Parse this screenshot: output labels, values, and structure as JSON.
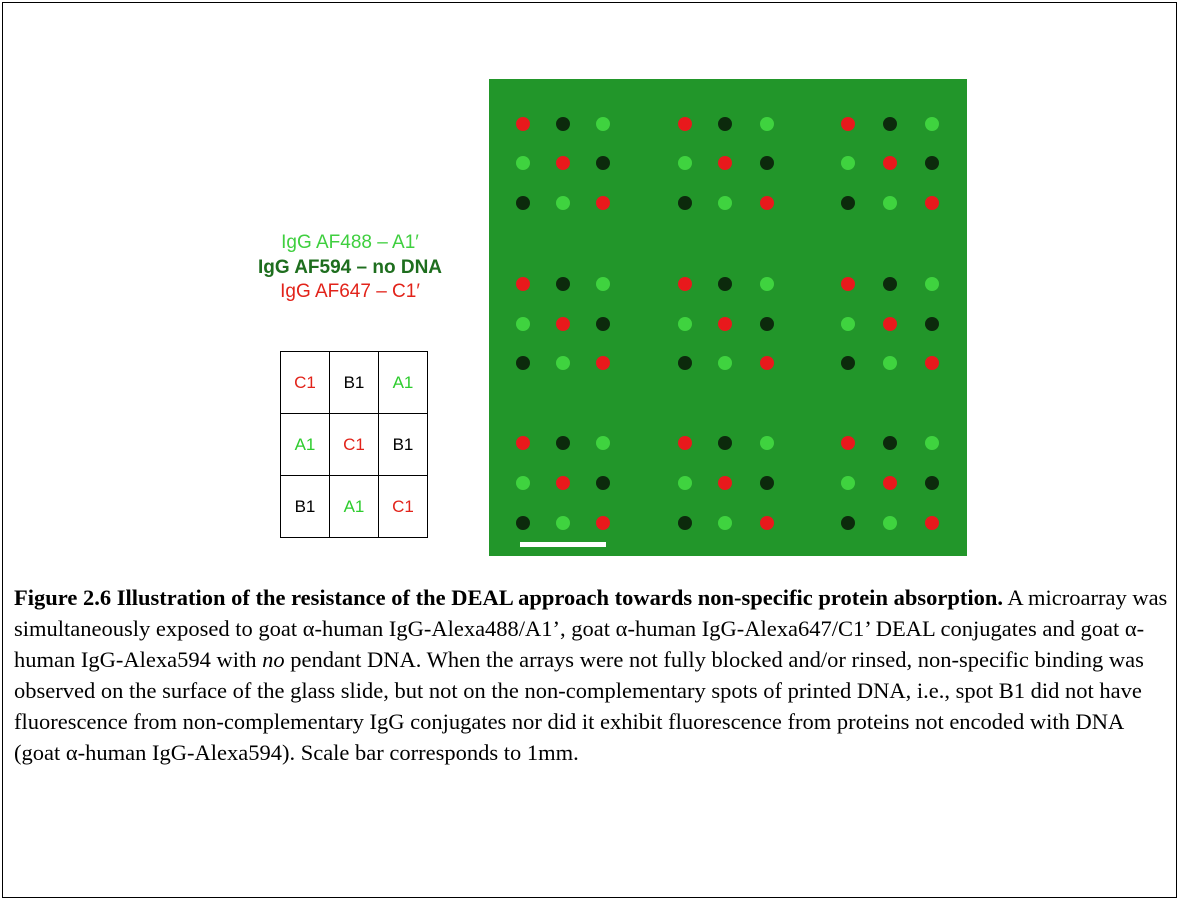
{
  "legend": [
    "IgG AF488 – A1′",
    "IgG AF594 – no DNA",
    "IgG AF647 – C1′"
  ],
  "table": {
    "rows": [
      [
        "C1",
        "B1",
        "A1"
      ],
      [
        "A1",
        "C1",
        "B1"
      ],
      [
        "B1",
        "A1",
        "C1"
      ]
    ]
  },
  "caption": {
    "title": "Figure 2.6  Illustration of the resistance of the DEAL approach towards non-specific protein absorption.",
    "text": [
      "  A microarray was simultaneously exposed to goat α-human IgG-Alexa488/A1’, goat α-human IgG-Alexa647/C1’ DEAL conjugates and goat α-human IgG-Alexa594 with ",
      "no",
      " pendant DNA.  When the arrays were not fully blocked and/or rinsed, non-specific binding was observed on the surface of the glass slide, but not on the non-complementary spots of printed DNA, i.e., spot B1 did not have fluorescence from non-complementary IgG conjugates nor did it exhibit fluorescence from proteins not encoded with DNA (goat α-human IgG-Alexa594).  Scale bar corresponds to 1mm."
    ]
  }
}
